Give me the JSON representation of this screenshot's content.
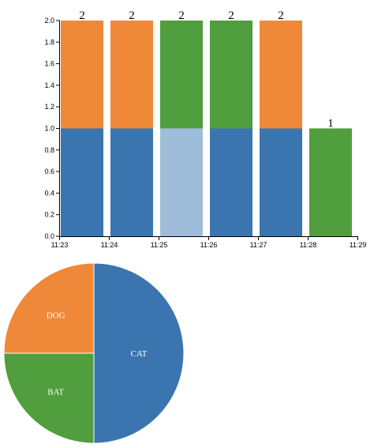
{
  "chart_data": [
    {
      "type": "bar",
      "x": [
        "11:23",
        "11:24",
        "11:25",
        "11:26",
        "11:27",
        "11:28"
      ],
      "xticks": [
        "11:23",
        "11:24",
        "11:25",
        "11:26",
        "11:27",
        "11:28",
        "11:29"
      ],
      "series": [
        {
          "color": "#3a75b0",
          "values": [
            1,
            1,
            1,
            1,
            1,
            0
          ]
        },
        {
          "color": "#f0883a",
          "values": [
            1,
            1,
            0,
            0,
            1,
            0
          ]
        },
        {
          "color": "#519e3e",
          "values": [
            0,
            0,
            1,
            1,
            0,
            1
          ]
        }
      ],
      "highlight": {
        "series": 0,
        "index": 2,
        "color": "#9fbcda"
      },
      "totals": [
        2,
        2,
        2,
        2,
        2,
        1
      ],
      "ylim": [
        0,
        2
      ],
      "yticks": [
        {
          "value": 0,
          "label": "0.0"
        },
        0.2,
        0.4,
        0.6,
        0.8,
        {
          "value": 1,
          "label": "1.0"
        },
        1.2,
        1.4,
        1.6,
        1.8,
        {
          "value": 2,
          "label": "2.0"
        }
      ]
    },
    {
      "type": "pie",
      "categories": [
        "CAT",
        "BAT",
        "DOG"
      ],
      "values": [
        50,
        25,
        25
      ],
      "colors": [
        "#3a75b0",
        "#519e3e",
        "#f0883a"
      ]
    }
  ]
}
